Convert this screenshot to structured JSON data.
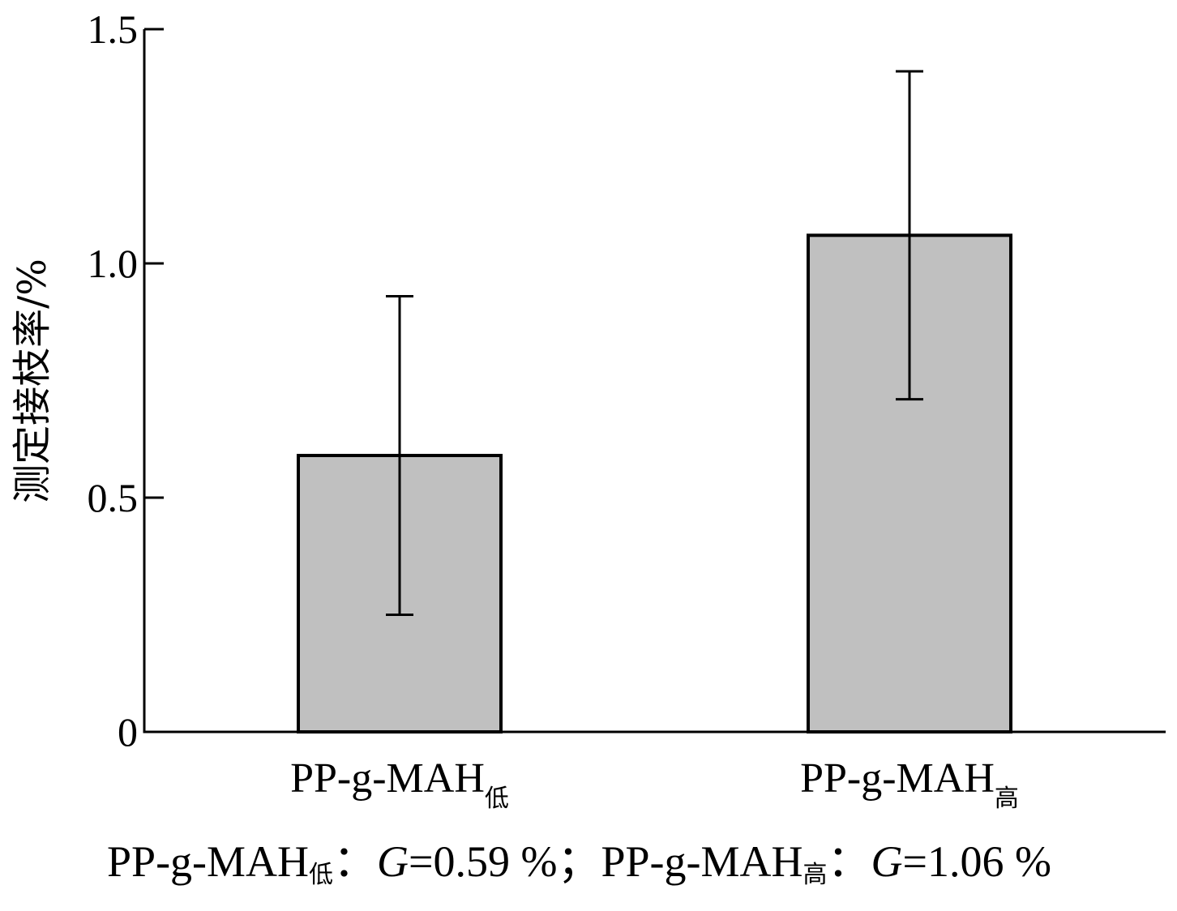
{
  "chart_data": {
    "type": "bar",
    "categories": [
      {
        "base": "PP-g-MAH",
        "sub": "低"
      },
      {
        "base": "PP-g-MAH",
        "sub": "高"
      }
    ],
    "values": [
      0.59,
      1.06
    ],
    "error_low": [
      0.25,
      0.71
    ],
    "error_high": [
      0.93,
      1.41
    ],
    "ylabel": "测定接枝率/%",
    "ylim": [
      0,
      1.5
    ],
    "yticks": [
      {
        "value": 0,
        "label": "0"
      },
      {
        "value": 0.5,
        "label": "0.5"
      },
      {
        "value": 1.0,
        "label": "1.0"
      },
      {
        "value": 1.5,
        "label": "1.5"
      }
    ],
    "bar_color": "#c0c0c0",
    "grid": false,
    "legend": "none"
  },
  "caption": {
    "left_name": "PP-g-MAH",
    "left_sub": "低",
    "left_sep": "：",
    "left_var": "G",
    "left_value": "=0.59 %",
    "separator": "；",
    "right_name": "PP-g-MAH",
    "right_sub": "高",
    "right_sep": "：",
    "right_var": "G",
    "right_value": "=1.06 %"
  }
}
